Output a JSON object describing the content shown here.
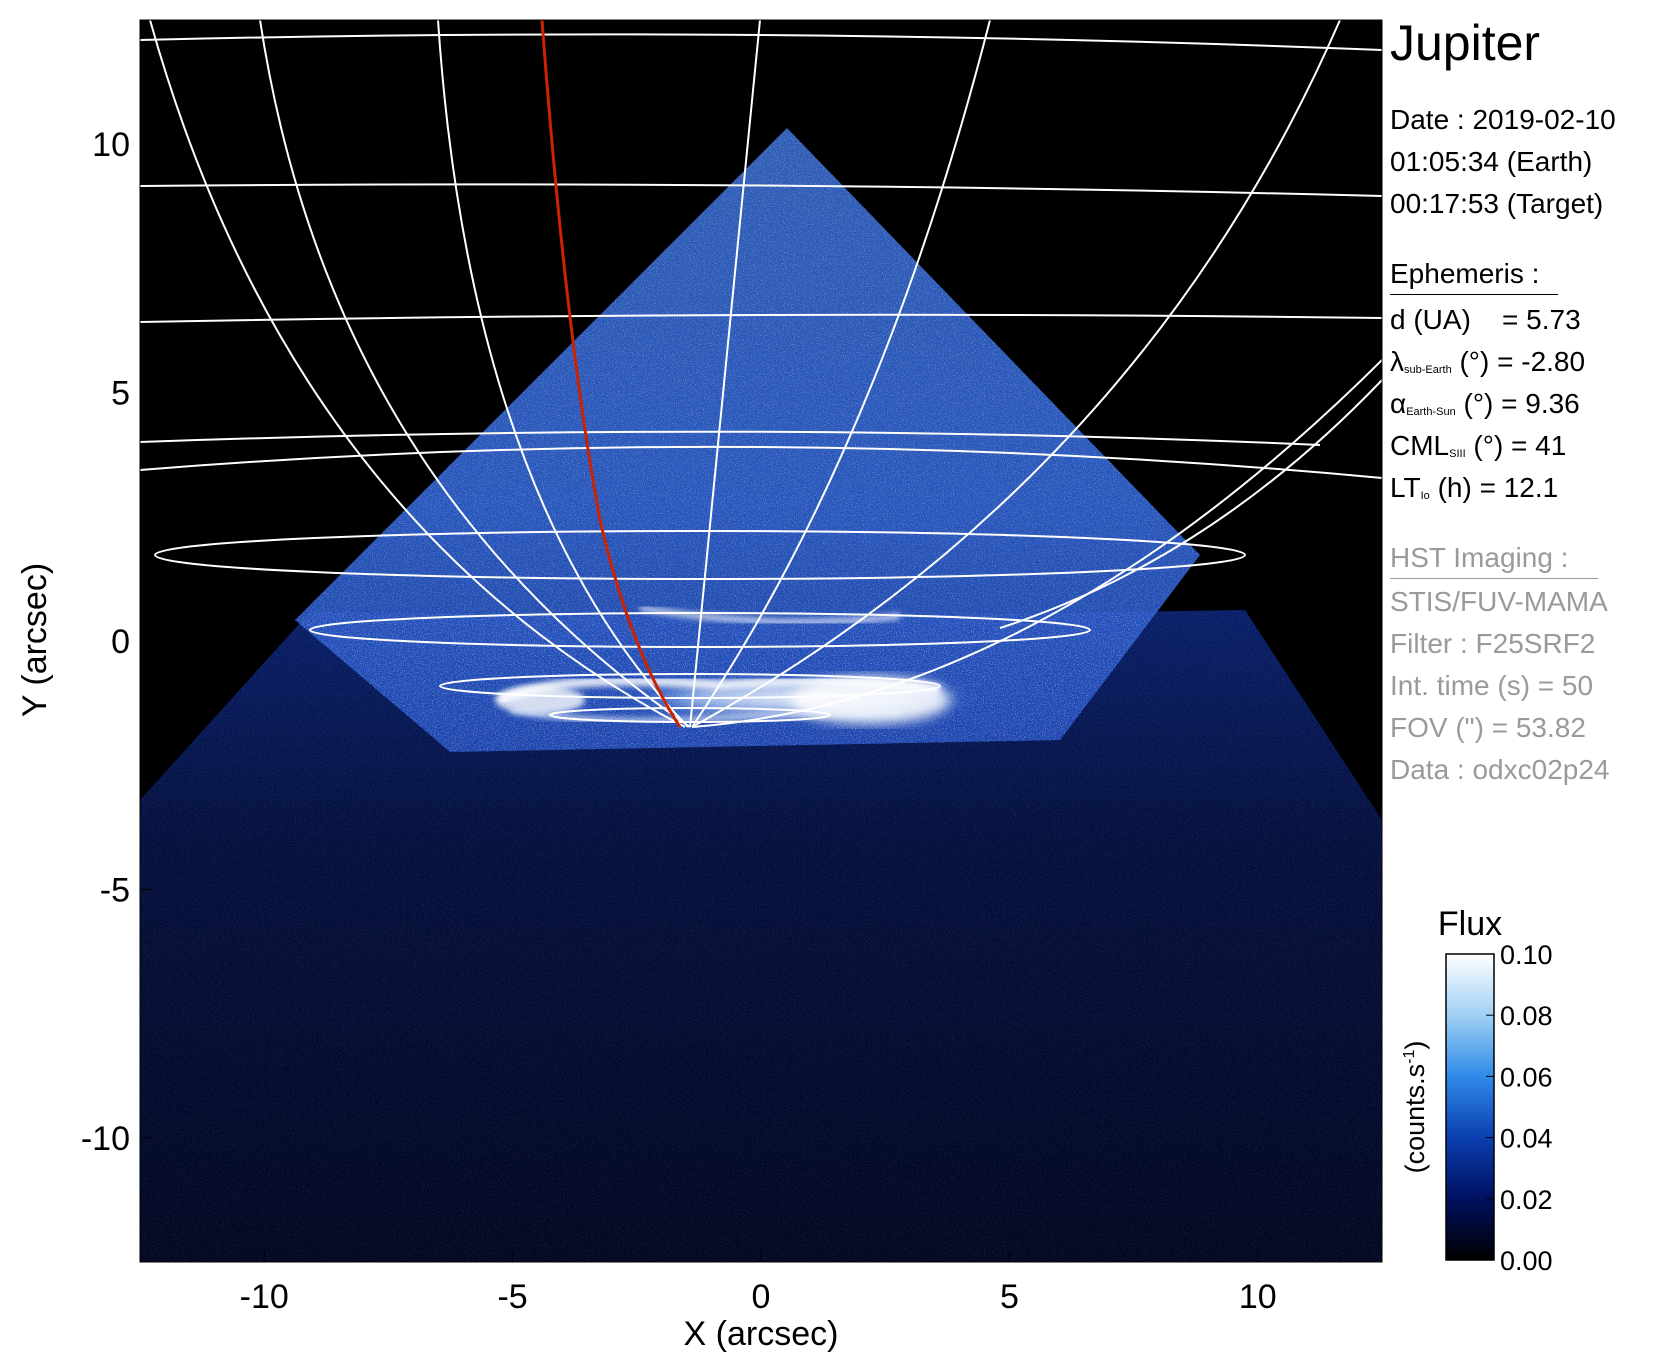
{
  "planet": "Jupiter",
  "info": {
    "date_line": "Date : 2019-02-10",
    "earth_time": "01:05:34 (Earth)",
    "target_time": "00:17:53 (Target)"
  },
  "ephemeris": {
    "header": "Ephemeris :",
    "d_label": "d (UA)",
    "d_value": "= 5.73",
    "lat_symbol": "λ",
    "lat_sub": "sub-Earth",
    "lat_rest": "(°) = -2.80",
    "phase_symbol": "α",
    "phase_sub": "Earth-Sun",
    "phase_rest": "(°) = 9.36",
    "cml_main": "CML",
    "cml_sub": "SIII",
    "cml_rest": "(°) = 41",
    "lt_main": "LT",
    "lt_sub": "Io",
    "lt_rest": "(h) = 12.1"
  },
  "imaging": {
    "header": "HST Imaging :",
    "instrument": "STIS/FUV-MAMA",
    "filter": "Filter : F25SRF2",
    "int_time": "Int. time (s) = 50",
    "fov": "FOV (\") = 53.82",
    "data": "Data : odxc02p24"
  },
  "chart_data": {
    "type": "heatmap",
    "xlabel": "X (arcsec)",
    "ylabel": "Y (arcsec)",
    "xlim": [
      -12.5,
      12.5
    ],
    "ylim": [
      -12.5,
      12.5
    ],
    "x_ticks": [
      -10,
      -5,
      0,
      5,
      10
    ],
    "y_ticks": [
      10,
      5,
      0,
      -5,
      -10
    ],
    "x_tick_labels": [
      "-10",
      "-5",
      "0",
      "5",
      "10"
    ],
    "y_tick_labels": [
      "10",
      "5",
      "0",
      "-5",
      "-10"
    ],
    "colorbar": {
      "title": "Flux",
      "label": "(counts.s",
      "label_sup": "-1",
      "label_end": ")",
      "ticks": [
        0.1,
        0.08,
        0.06,
        0.04,
        0.02,
        0.0
      ],
      "tick_labels": [
        "0.10",
        "0.08",
        "0.06",
        "0.04",
        "0.02",
        "0.00"
      ],
      "range": [
        0.0,
        0.1
      ],
      "colors": [
        "#000000",
        "#001060",
        "#0b3fb0",
        "#2f8ae8",
        "#9fd0f5",
        "#ffffff"
      ]
    },
    "colors": {
      "background": "#000000",
      "grid": "#ffffff",
      "io_footpath": "#cc2200",
      "emission": "#3a78d8"
    }
  }
}
